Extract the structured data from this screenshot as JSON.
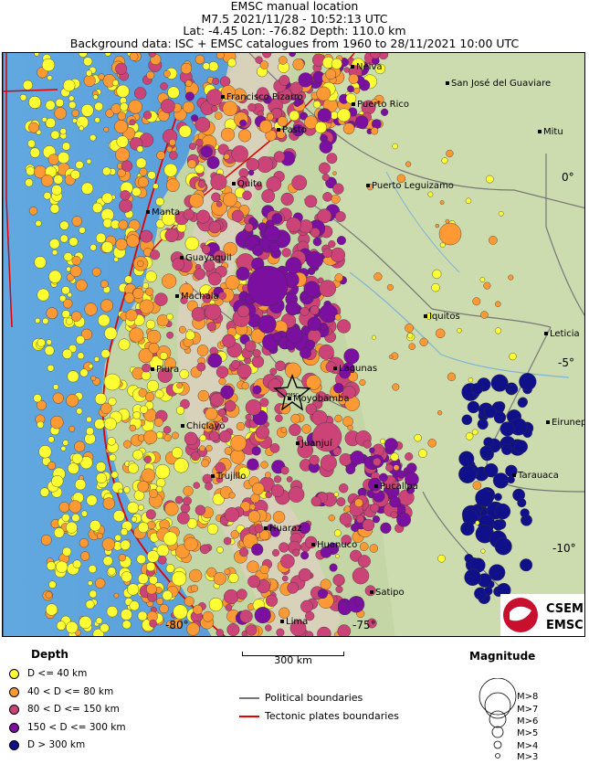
{
  "header": {
    "line1": "EMSC manual location",
    "line2": "M7.5   2021/11/28 - 10:52:13 UTC",
    "line3": "Lat: -4.45    Lon: -76.82       Depth: 110.0 km",
    "line4": "Background data: ISC + EMSC catalogues from 1960 to 28/11/2021 10:00 UTC"
  },
  "map": {
    "cities": [
      {
        "name": "Neiva"
      },
      {
        "name": "San José del Guaviare"
      },
      {
        "name": "Francisco Pizarro"
      },
      {
        "name": "Puerto Rico"
      },
      {
        "name": "Pasto"
      },
      {
        "name": "Mitu"
      },
      {
        "name": "Quito"
      },
      {
        "name": "Puerto Leguizamo"
      },
      {
        "name": "Manta"
      },
      {
        "name": "Guayaquil"
      },
      {
        "name": "Machala"
      },
      {
        "name": "Iquitos"
      },
      {
        "name": "Leticia"
      },
      {
        "name": "Piura"
      },
      {
        "name": "Lagunas"
      },
      {
        "name": "Moyobamba"
      },
      {
        "name": "Eirunepe"
      },
      {
        "name": "Chiclayo"
      },
      {
        "name": "Juanjuí"
      },
      {
        "name": "Trujillo"
      },
      {
        "name": "Pucallpa"
      },
      {
        "name": "Tarauaca"
      },
      {
        "name": "Huaraz"
      },
      {
        "name": "Huanuco"
      },
      {
        "name": "Satipo"
      },
      {
        "name": "Lima"
      }
    ],
    "lat_labels": [
      "0°",
      "-5°",
      "-10°"
    ],
    "lon_labels": [
      "-80°",
      "-75°"
    ],
    "epicenter_label": "EMSC",
    "colors": {
      "ocean": "#5aa0dc",
      "land": "#c9d8b0",
      "andes": "#d8d2c2",
      "plate_boundary": "#e00000",
      "political": "#777777",
      "d40": "#ffff33",
      "d80": "#ff9933",
      "d150": "#cc4477",
      "d300": "#7a0fa0",
      "d300plus": "#10108a"
    }
  },
  "legend": {
    "depth_title": "Depth",
    "depth_items": [
      {
        "label": "D <= 40 km",
        "color": "#ffff33"
      },
      {
        "label": "40 < D <= 80 km",
        "color": "#ff9933"
      },
      {
        "label": "80 < D <= 150 km",
        "color": "#cc4477"
      },
      {
        "label": "150 < D <= 300 km",
        "color": "#7a0fa0"
      },
      {
        "label": "D > 300 km",
        "color": "#10108a"
      }
    ],
    "scale_label": "300 km",
    "lines": [
      {
        "label": "Political boundaries",
        "color": "#777777"
      },
      {
        "label": "Tectonic plates boundaries",
        "color": "#e00000"
      }
    ],
    "magnitude_title": "Magnitude",
    "magnitudes": [
      "M>8",
      "M>7",
      "M>6",
      "M>5",
      "M>4",
      "M>3"
    ]
  },
  "logo": {
    "line1": "CSEM",
    "line2": "EMSC"
  }
}
